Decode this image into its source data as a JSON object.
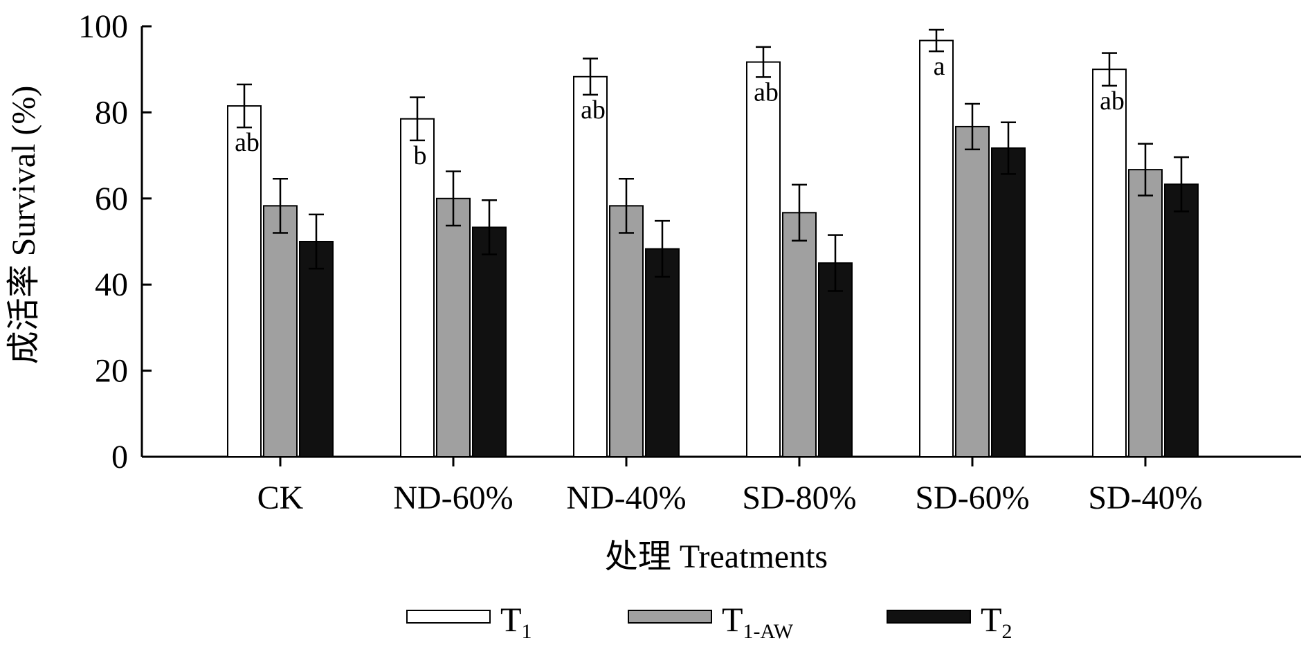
{
  "chart_data": {
    "type": "bar",
    "xlabel": "处理  Treatments",
    "ylabel": "成活率  Survival (%)",
    "ylim": [
      0,
      100
    ],
    "yticks": [
      "0",
      "20",
      "40",
      "60",
      "80",
      "100"
    ],
    "categories": [
      "CK",
      "ND-60%",
      "ND-40%",
      "SD-80%",
      "SD-60%",
      "SD-40%"
    ],
    "series": [
      {
        "name": "T1",
        "label_main": "T",
        "label_sub": "1",
        "color": "#ffffff",
        "values": [
          81.5,
          78.5,
          88.3,
          91.7,
          96.7,
          90.0
        ],
        "errors": [
          5.0,
          5.0,
          4.2,
          3.5,
          2.5,
          3.8
        ],
        "significance": [
          "ab",
          "b",
          "ab",
          "ab",
          "a",
          "ab"
        ]
      },
      {
        "name": "T1-AW",
        "label_main": "T",
        "label_sub": "1-AW",
        "color": "#a0a0a0",
        "values": [
          58.3,
          60.0,
          58.3,
          56.7,
          76.7,
          66.7
        ],
        "errors": [
          6.3,
          6.3,
          6.3,
          6.5,
          5.3,
          6.0
        ],
        "significance": [
          "",
          "",
          "",
          "",
          "",
          ""
        ]
      },
      {
        "name": "T2",
        "label_main": "T",
        "label_sub": "2",
        "color": "#111111",
        "values": [
          50.0,
          53.3,
          48.3,
          45.0,
          71.7,
          63.3
        ],
        "errors": [
          6.3,
          6.3,
          6.5,
          6.5,
          6.0,
          6.3
        ],
        "significance": [
          "",
          "",
          "",
          "",
          "",
          ""
        ]
      }
    ],
    "legend_position": "bottom-center",
    "grid": false
  }
}
